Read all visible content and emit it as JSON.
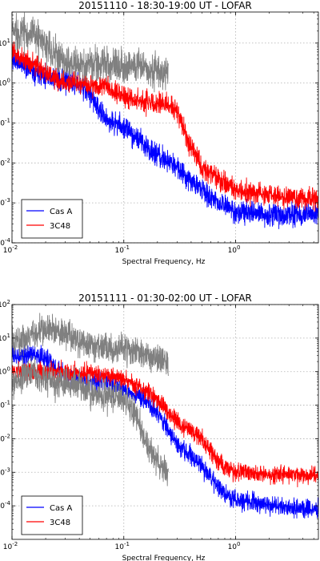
{
  "colors": {
    "cas_a": "#0000ff",
    "c3c48": "#ff0000",
    "gray": "#808080",
    "grid": "#b0b0b0",
    "axes": "#000000"
  },
  "chart_data": [
    {
      "type": "line",
      "title": "20151110 - 18:30-19:00 UT - LOFAR",
      "xlabel": "Spectral Frequency, Hz",
      "ylabel": "",
      "xscale": "log",
      "yscale": "log",
      "xlim": [
        0.01,
        5.5
      ],
      "ylim": [
        0.0001,
        60
      ],
      "xticks": [
        {
          "value": 0.01,
          "base": "10",
          "exp": "-2"
        },
        {
          "value": 0.1,
          "base": "10",
          "exp": "-1"
        },
        {
          "value": 1,
          "base": "10",
          "exp": "0"
        }
      ],
      "yticks": [
        {
          "value": 0.0001,
          "base": "10",
          "exp": "-4"
        },
        {
          "value": 0.001,
          "base": "10",
          "exp": "-3"
        },
        {
          "value": 0.01,
          "base": "10",
          "exp": "-2"
        },
        {
          "value": 0.1,
          "base": "10",
          "exp": "-1"
        },
        {
          "value": 1,
          "base": "10",
          "exp": "0"
        },
        {
          "value": 10,
          "base": "10",
          "exp": "1"
        }
      ],
      "grid": true,
      "legend_position": "bottom-left",
      "series": [
        {
          "name": "Cas A",
          "color_key": "cas_a",
          "in_legend": true,
          "noise": 0.14,
          "seed": 11,
          "x": [
            0.01,
            0.014,
            0.02,
            0.03,
            0.04,
            0.05,
            0.06,
            0.07,
            0.1,
            0.15,
            0.2,
            0.3,
            0.5,
            0.7,
            1.0,
            2.0,
            5.5
          ],
          "y": [
            4.0,
            2.5,
            1.6,
            1.1,
            0.95,
            0.55,
            0.2,
            0.12,
            0.08,
            0.03,
            0.015,
            0.008,
            0.002,
            0.001,
            0.0006,
            0.0005,
            0.0005
          ]
        },
        {
          "name": "3C48",
          "color_key": "c3c48",
          "in_legend": true,
          "noise": 0.13,
          "seed": 23,
          "x": [
            0.01,
            0.014,
            0.02,
            0.025,
            0.03,
            0.04,
            0.05,
            0.07,
            0.1,
            0.15,
            0.2,
            0.25,
            0.3,
            0.35,
            0.4,
            0.5,
            0.7,
            1.0,
            2.0,
            5.5
          ],
          "y": [
            6.0,
            3.5,
            2.0,
            1.1,
            1.0,
            1.0,
            0.9,
            0.9,
            0.45,
            0.35,
            0.3,
            0.3,
            0.2,
            0.06,
            0.025,
            0.008,
            0.004,
            0.002,
            0.0015,
            0.0012
          ]
        },
        {
          "name": "",
          "color_key": "gray",
          "in_legend": false,
          "noise": 0.22,
          "seed": 37,
          "x": [
            0.01,
            0.013,
            0.016,
            0.02,
            0.025,
            0.03,
            0.04,
            0.05,
            0.07,
            0.1,
            0.15,
            0.2,
            0.25
          ],
          "y": [
            20,
            19,
            15,
            8,
            5,
            3.5,
            2.5,
            3,
            3,
            3,
            2.5,
            2.0,
            1.6
          ]
        }
      ]
    },
    {
      "type": "line",
      "title": "20151111 - 01:30-02:00 UT - LOFAR",
      "xlabel": "Spectral Frequency, Hz",
      "ylabel": "",
      "xscale": "log",
      "yscale": "log",
      "xlim": [
        0.01,
        5.5
      ],
      "ylim": [
        1e-05,
        100
      ],
      "xticks": [
        {
          "value": 0.01,
          "base": "10",
          "exp": "-2"
        },
        {
          "value": 0.1,
          "base": "10",
          "exp": "-1"
        },
        {
          "value": 1,
          "base": "10",
          "exp": "0"
        }
      ],
      "yticks": [
        {
          "value": 0.0001,
          "base": "10",
          "exp": "-4"
        },
        {
          "value": 0.001,
          "base": "10",
          "exp": "-3"
        },
        {
          "value": 0.01,
          "base": "10",
          "exp": "-2"
        },
        {
          "value": 0.1,
          "base": "10",
          "exp": "-1"
        },
        {
          "value": 1,
          "base": "10",
          "exp": "0"
        },
        {
          "value": 10,
          "base": "10",
          "exp": "1"
        },
        {
          "value": 100,
          "base": "10",
          "exp": "2"
        }
      ],
      "grid": true,
      "legend_position": "bottom-left",
      "series": [
        {
          "name": "Cas A",
          "color_key": "cas_a",
          "in_legend": true,
          "noise": 0.14,
          "seed": 53,
          "x": [
            0.01,
            0.015,
            0.02,
            0.03,
            0.05,
            0.07,
            0.1,
            0.15,
            0.2,
            0.3,
            0.5,
            0.7,
            1.0,
            2.0,
            5.5
          ],
          "y": [
            3.0,
            3.3,
            2.5,
            0.7,
            0.5,
            0.5,
            0.3,
            0.15,
            0.06,
            0.007,
            0.0015,
            0.0003,
            0.00015,
            0.0001,
            8e-05
          ]
        },
        {
          "name": "3C48",
          "color_key": "c3c48",
          "in_legend": true,
          "noise": 0.13,
          "seed": 71,
          "x": [
            0.01,
            0.015,
            0.02,
            0.03,
            0.05,
            0.07,
            0.1,
            0.15,
            0.2,
            0.3,
            0.5,
            0.7,
            1.0,
            2.0,
            5.5
          ],
          "y": [
            1.1,
            0.9,
            1.1,
            1.0,
            0.9,
            0.8,
            0.6,
            0.3,
            0.15,
            0.03,
            0.01,
            0.002,
            0.001,
            0.0009,
            0.0008
          ]
        },
        {
          "name": "",
          "color_key": "gray",
          "in_legend": false,
          "noise": 0.22,
          "seed": 89,
          "x": [
            0.01,
            0.013,
            0.016,
            0.02,
            0.03,
            0.04,
            0.05,
            0.07,
            0.1,
            0.15,
            0.2,
            0.25
          ],
          "y": [
            8,
            10,
            15,
            20,
            15,
            8,
            6,
            5,
            5,
            3.5,
            2.5,
            2.0
          ]
        },
        {
          "name": "",
          "color_key": "gray",
          "in_legend": false,
          "noise": 0.22,
          "seed": 97,
          "x": [
            0.01,
            0.013,
            0.016,
            0.02,
            0.03,
            0.04,
            0.05,
            0.07,
            0.1,
            0.13,
            0.15,
            0.2,
            0.25
          ],
          "y": [
            0.4,
            0.8,
            1.0,
            0.6,
            0.45,
            0.4,
            0.25,
            0.2,
            0.15,
            0.05,
            0.01,
            0.002,
            0.0008
          ]
        }
      ]
    }
  ]
}
